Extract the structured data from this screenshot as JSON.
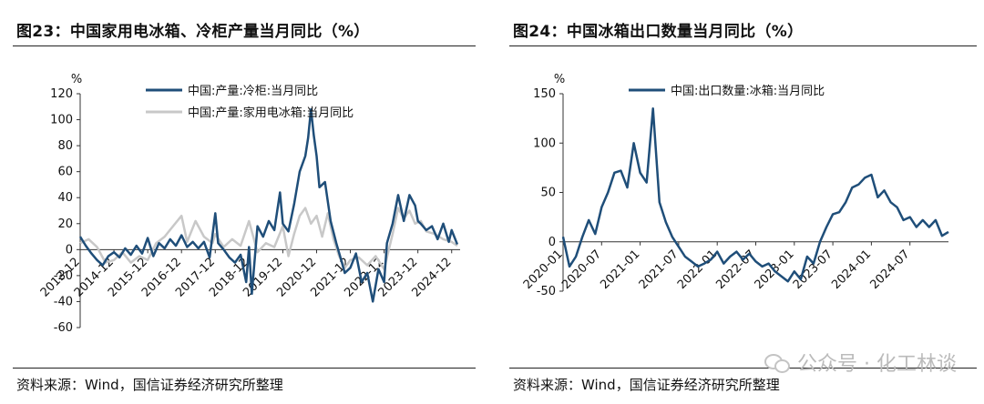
{
  "left": {
    "title": "图23：中国家用电冰箱、冷柜产量当月同比（%）",
    "source": "资料来源：Wind，国信证券经济研究所整理"
  },
  "right": {
    "title": "图24：中国冰箱出口数量当月同比（%）",
    "source": "资料来源：Wind，国信证券经济研究所整理"
  },
  "watermark": "公众号 · 化工林谈",
  "chart_data": [
    {
      "type": "line",
      "ylabel": "%",
      "ylim": [
        -60,
        120
      ],
      "yticks": [
        -60,
        -40,
        -20,
        0,
        20,
        40,
        60,
        80,
        100,
        120
      ],
      "x_start": "2013-12",
      "x_end": "2025-03",
      "xtick_labels": [
        "2013-12",
        "2014-12",
        "2015-12",
        "2016-12",
        "2017-12",
        "2018-12",
        "2019-12",
        "2020-12",
        "2021-12",
        "2022-12",
        "2023-12",
        "2024-12"
      ],
      "legend_position": "top-center",
      "grid": false,
      "series": [
        {
          "name": "中国:产量:冷柜:当月同比",
          "color": "#1f4e79",
          "points": [
            [
              "2013-12",
              10
            ],
            [
              "2014-02",
              3
            ],
            [
              "2014-04",
              -3
            ],
            [
              "2014-06",
              -8
            ],
            [
              "2014-08",
              -12
            ],
            [
              "2014-10",
              -5
            ],
            [
              "2014-12",
              -2
            ],
            [
              "2015-02",
              -6
            ],
            [
              "2015-04",
              1
            ],
            [
              "2015-06",
              -4
            ],
            [
              "2015-08",
              3
            ],
            [
              "2015-10",
              -3
            ],
            [
              "2015-12",
              9
            ],
            [
              "2016-02",
              -5
            ],
            [
              "2016-04",
              5
            ],
            [
              "2016-06",
              1
            ],
            [
              "2016-08",
              8
            ],
            [
              "2016-10",
              3
            ],
            [
              "2016-12",
              11
            ],
            [
              "2017-02",
              2
            ],
            [
              "2017-04",
              6
            ],
            [
              "2017-06",
              1
            ],
            [
              "2017-08",
              6
            ],
            [
              "2017-10",
              -6
            ],
            [
              "2017-12",
              28
            ],
            [
              "2018-01",
              5
            ],
            [
              "2018-03",
              0
            ],
            [
              "2018-05",
              -6
            ],
            [
              "2018-07",
              -10
            ],
            [
              "2018-09",
              -4
            ],
            [
              "2018-11",
              -25
            ],
            [
              "2018-12",
              2
            ],
            [
              "2019-01",
              -34
            ],
            [
              "2019-03",
              18
            ],
            [
              "2019-05",
              10
            ],
            [
              "2019-07",
              22
            ],
            [
              "2019-09",
              15
            ],
            [
              "2019-11",
              44
            ],
            [
              "2019-12",
              20
            ],
            [
              "2020-02",
              14
            ],
            [
              "2020-04",
              35
            ],
            [
              "2020-06",
              60
            ],
            [
              "2020-08",
              72
            ],
            [
              "2020-09",
              86
            ],
            [
              "2020-10",
              108
            ],
            [
              "2020-11",
              88
            ],
            [
              "2020-12",
              72
            ],
            [
              "2021-01",
              48
            ],
            [
              "2021-03",
              52
            ],
            [
              "2021-05",
              22
            ],
            [
              "2021-07",
              5
            ],
            [
              "2021-09",
              -10
            ],
            [
              "2021-10",
              -18
            ],
            [
              "2021-12",
              -14
            ],
            [
              "2022-02",
              -3
            ],
            [
              "2022-04",
              -25
            ],
            [
              "2022-06",
              -18
            ],
            [
              "2022-08",
              -40
            ],
            [
              "2022-10",
              -15
            ],
            [
              "2022-12",
              -25
            ],
            [
              "2023-01",
              5
            ],
            [
              "2023-03",
              20
            ],
            [
              "2023-05",
              42
            ],
            [
              "2023-07",
              22
            ],
            [
              "2023-09",
              42
            ],
            [
              "2023-11",
              34
            ],
            [
              "2023-12",
              22
            ],
            [
              "2024-01",
              20
            ],
            [
              "2024-03",
              15
            ],
            [
              "2024-05",
              18
            ],
            [
              "2024-07",
              8
            ],
            [
              "2024-09",
              20
            ],
            [
              "2024-11",
              6
            ],
            [
              "2024-12",
              15
            ],
            [
              "2025-02",
              4
            ]
          ]
        },
        {
          "name": "中国:产量:家用电冰箱:当月同比",
          "color": "#c8c8c8",
          "points": [
            [
              "2013-12",
              5
            ],
            [
              "2014-03",
              8
            ],
            [
              "2014-06",
              2
            ],
            [
              "2014-09",
              -10
            ],
            [
              "2014-12",
              -8
            ],
            [
              "2015-03",
              -2
            ],
            [
              "2015-06",
              -10
            ],
            [
              "2015-09",
              -5
            ],
            [
              "2015-12",
              -8
            ],
            [
              "2016-03",
              5
            ],
            [
              "2016-06",
              10
            ],
            [
              "2016-09",
              18
            ],
            [
              "2016-12",
              26
            ],
            [
              "2017-02",
              6
            ],
            [
              "2017-05",
              22
            ],
            [
              "2017-08",
              10
            ],
            [
              "2017-11",
              5
            ],
            [
              "2017-12",
              12
            ],
            [
              "2018-03",
              2
            ],
            [
              "2018-06",
              8
            ],
            [
              "2018-09",
              3
            ],
            [
              "2018-12",
              22
            ],
            [
              "2019-03",
              -2
            ],
            [
              "2019-06",
              5
            ],
            [
              "2019-09",
              2
            ],
            [
              "2019-12",
              18
            ],
            [
              "2020-02",
              -5
            ],
            [
              "2020-04",
              12
            ],
            [
              "2020-06",
              26
            ],
            [
              "2020-08",
              32
            ],
            [
              "2020-10",
              20
            ],
            [
              "2020-12",
              26
            ],
            [
              "2021-02",
              10
            ],
            [
              "2021-04",
              28
            ],
            [
              "2021-06",
              8
            ],
            [
              "2021-08",
              -5
            ],
            [
              "2021-10",
              -14
            ],
            [
              "2021-12",
              -8
            ],
            [
              "2022-03",
              -6
            ],
            [
              "2022-06",
              -12
            ],
            [
              "2022-09",
              -5
            ],
            [
              "2022-12",
              -15
            ],
            [
              "2023-03",
              12
            ],
            [
              "2023-05",
              32
            ],
            [
              "2023-07",
              24
            ],
            [
              "2023-09",
              30
            ],
            [
              "2023-11",
              20
            ],
            [
              "2024-01",
              22
            ],
            [
              "2024-03",
              14
            ],
            [
              "2024-06",
              12
            ],
            [
              "2024-09",
              8
            ],
            [
              "2024-12",
              6
            ],
            [
              "2025-02",
              3
            ]
          ]
        }
      ]
    },
    {
      "type": "line",
      "ylabel": "%",
      "ylim": [
        -50,
        150
      ],
      "yticks": [
        -50,
        0,
        50,
        100,
        150
      ],
      "x_start": "2020-01",
      "x_end": "2025-01",
      "xtick_labels": [
        "2020-01",
        "2020-07",
        "2021-01",
        "2021-07",
        "2022-01",
        "2022-07",
        "2023-01",
        "2023-07",
        "2024-01",
        "2024-07"
      ],
      "legend_position": "top-center",
      "grid": false,
      "series": [
        {
          "name": "中国:出口数量:冰箱:当月同比",
          "color": "#1f4e79",
          "points": [
            [
              "2020-01",
              5
            ],
            [
              "2020-02",
              -25
            ],
            [
              "2020-03",
              -15
            ],
            [
              "2020-04",
              5
            ],
            [
              "2020-05",
              22
            ],
            [
              "2020-06",
              8
            ],
            [
              "2020-07",
              35
            ],
            [
              "2020-08",
              50
            ],
            [
              "2020-09",
              70
            ],
            [
              "2020-10",
              72
            ],
            [
              "2020-11",
              55
            ],
            [
              "2020-12",
              100
            ],
            [
              "2021-01",
              70
            ],
            [
              "2021-02",
              60
            ],
            [
              "2021-03",
              135
            ],
            [
              "2021-04",
              40
            ],
            [
              "2021-05",
              20
            ],
            [
              "2021-06",
              5
            ],
            [
              "2021-07",
              -5
            ],
            [
              "2021-08",
              -15
            ],
            [
              "2021-09",
              -20
            ],
            [
              "2021-10",
              -25
            ],
            [
              "2021-11",
              -22
            ],
            [
              "2021-12",
              -18
            ],
            [
              "2022-01",
              -10
            ],
            [
              "2022-02",
              -22
            ],
            [
              "2022-03",
              -15
            ],
            [
              "2022-04",
              -10
            ],
            [
              "2022-05",
              -18
            ],
            [
              "2022-06",
              -12
            ],
            [
              "2022-07",
              -20
            ],
            [
              "2022-08",
              -25
            ],
            [
              "2022-09",
              -22
            ],
            [
              "2022-10",
              -30
            ],
            [
              "2022-11",
              -35
            ],
            [
              "2022-12",
              -40
            ],
            [
              "2023-01",
              -30
            ],
            [
              "2023-02",
              -38
            ],
            [
              "2023-03",
              -15
            ],
            [
              "2023-04",
              -22
            ],
            [
              "2023-05",
              0
            ],
            [
              "2023-06",
              15
            ],
            [
              "2023-07",
              28
            ],
            [
              "2023-08",
              30
            ],
            [
              "2023-09",
              40
            ],
            [
              "2023-10",
              55
            ],
            [
              "2023-11",
              58
            ],
            [
              "2023-12",
              65
            ],
            [
              "2024-01",
              68
            ],
            [
              "2024-02",
              45
            ],
            [
              "2024-03",
              52
            ],
            [
              "2024-04",
              40
            ],
            [
              "2024-05",
              35
            ],
            [
              "2024-06",
              22
            ],
            [
              "2024-07",
              25
            ],
            [
              "2024-08",
              15
            ],
            [
              "2024-09",
              22
            ],
            [
              "2024-10",
              15
            ],
            [
              "2024-11",
              22
            ],
            [
              "2024-12",
              6
            ],
            [
              "2025-01",
              10
            ]
          ]
        }
      ]
    }
  ]
}
